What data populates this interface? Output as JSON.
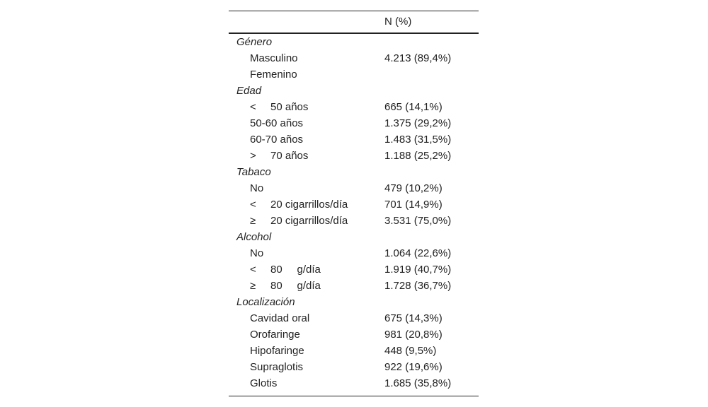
{
  "table": {
    "header": "N (%)",
    "groups": [
      {
        "title": "Género",
        "rows": [
          {
            "label": "Masculino",
            "value": "4.213 (89,4%)"
          },
          {
            "label": "Femenino"
          }
        ]
      },
      {
        "title": "Edad",
        "rows": [
          {
            "symbol": "<",
            "label": "50 años",
            "value": "665 (14,1%)"
          },
          {
            "label": "50-60 años",
            "value": "1.375 (29,2%)"
          },
          {
            "label": "60-70 años",
            "value": "1.483 (31,5%)"
          },
          {
            "symbol": ">",
            "label": "70 años",
            "value": "1.188 (25,2%)"
          }
        ]
      },
      {
        "title": "Tabaco",
        "rows": [
          {
            "label": "No",
            "value": "479 (10,2%)"
          },
          {
            "symbol": "<",
            "label": "20 cigarrillos/día",
            "value": "701 (14,9%)"
          },
          {
            "symbol": "≥",
            "label": "20 cigarrillos/día",
            "value": "3.531 (75,0%)"
          }
        ]
      },
      {
        "title": "Alcohol",
        "rows": [
          {
            "label": "No",
            "value": "1.064 (22,6%)"
          },
          {
            "symbol": "<",
            "label": "80     g/día",
            "value": "1.919 (40,7%)"
          },
          {
            "symbol": "≥",
            "label": "80     g/día",
            "value": "1.728 (36,7%)"
          }
        ]
      },
      {
        "title": "Localización",
        "rows": [
          {
            "label": "Cavidad oral",
            "value": "675 (14,3%)"
          },
          {
            "label": "Orofaringe",
            "value": "981 (20,8%)"
          },
          {
            "label": "Hipofaringe",
            "value": "448 (9,5%)"
          },
          {
            "label": "Supraglotis",
            "value": "922 (19,6%)"
          },
          {
            "label": "Glotis",
            "value": "1.685 (35,8%)"
          }
        ]
      }
    ]
  }
}
